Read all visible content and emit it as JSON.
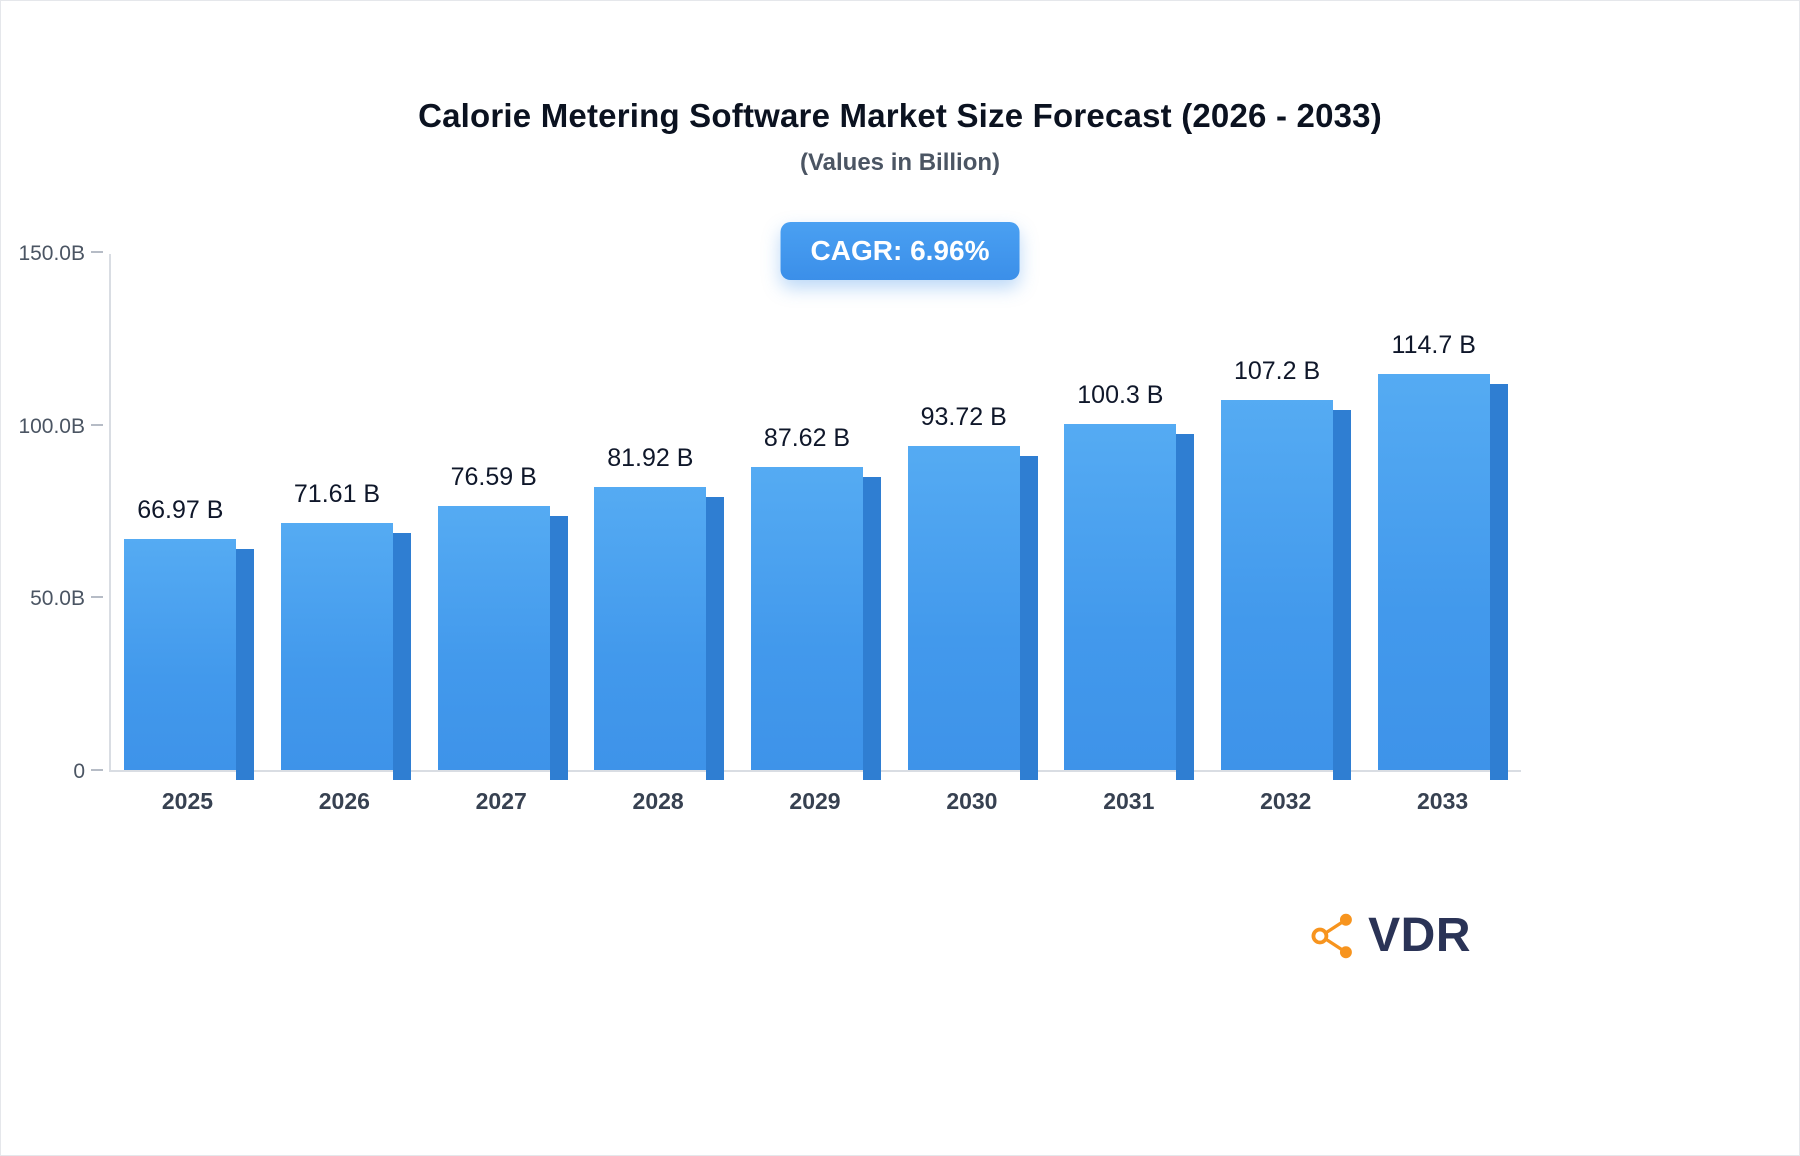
{
  "title": "Calorie Metering Software Market Size Forecast (2026 - 2033)",
  "subtitle": "(Values in Billion)",
  "badge": {
    "label": "CAGR: 6.96%"
  },
  "logo": {
    "text": "VDR"
  },
  "chart_data": {
    "type": "bar",
    "title": "Calorie Metering Software Market Size Forecast (2026 - 2033)",
    "subtitle": "(Values in Billion)",
    "cagr": "6.96%",
    "categories": [
      "2025",
      "2026",
      "2027",
      "2028",
      "2029",
      "2030",
      "2031",
      "2032",
      "2033"
    ],
    "values": [
      66.97,
      71.61,
      76.59,
      81.92,
      87.62,
      93.72,
      100.3,
      107.2,
      114.7
    ],
    "value_labels": [
      "66.97 B",
      "71.61 B",
      "76.59 B",
      "81.92 B",
      "87.62 B",
      "93.72 B",
      "100.3 B",
      "107.2 B",
      "114.7 B"
    ],
    "xlabel": "",
    "ylabel": "",
    "ylim": [
      0,
      150
    ],
    "y_ticks": [
      {
        "value": 0,
        "label": "0"
      },
      {
        "value": 50,
        "label": "50.0B"
      },
      {
        "value": 100,
        "label": "100.0B"
      },
      {
        "value": 150,
        "label": "150.0B"
      }
    ],
    "legend": null,
    "grid": false,
    "colors": {
      "bar_front": "#4299ec",
      "bar_side": "#2f7ed2",
      "badge": "#3b8fe9",
      "axis": "#d9dde3",
      "value_label": "#0f172a",
      "tick_label": "#4b5563",
      "logo_icon": "#f7941e",
      "logo_text": "#2a3356"
    }
  }
}
